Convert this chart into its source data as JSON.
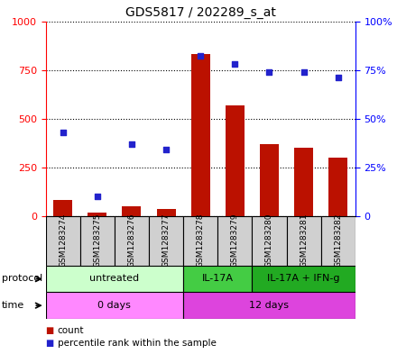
{
  "title": "GDS5817 / 202289_s_at",
  "samples": [
    "GSM1283274",
    "GSM1283275",
    "GSM1283276",
    "GSM1283277",
    "GSM1283278",
    "GSM1283279",
    "GSM1283280",
    "GSM1283281",
    "GSM1283282"
  ],
  "counts": [
    80,
    15,
    50,
    35,
    830,
    570,
    370,
    350,
    300
  ],
  "percentiles": [
    43,
    10,
    37,
    34,
    82,
    78,
    74,
    74,
    71
  ],
  "ylim_left": [
    0,
    1000
  ],
  "ylim_right": [
    0,
    100
  ],
  "yticks_left": [
    0,
    250,
    500,
    750,
    1000
  ],
  "yticks_right": [
    0,
    25,
    50,
    75,
    100
  ],
  "bar_color": "#bb1100",
  "dot_color": "#2222cc",
  "prot_colors": [
    "#ccffcc",
    "#44cc44",
    "#22aa22"
  ],
  "time_colors": [
    "#ff88ff",
    "#dd44dd"
  ],
  "protocol_groups": [
    {
      "label": "untreated",
      "start": 0,
      "end": 4
    },
    {
      "label": "IL-17A",
      "start": 4,
      "end": 6
    },
    {
      "label": "IL-17A + IFN-g",
      "start": 6,
      "end": 9
    }
  ],
  "time_groups": [
    {
      "label": "0 days",
      "start": 0,
      "end": 4
    },
    {
      "label": "12 days",
      "start": 4,
      "end": 9
    }
  ],
  "protocol_label": "protocol",
  "time_label": "time",
  "legend_count_label": "count",
  "legend_percentile_label": "percentile rank within the sample"
}
